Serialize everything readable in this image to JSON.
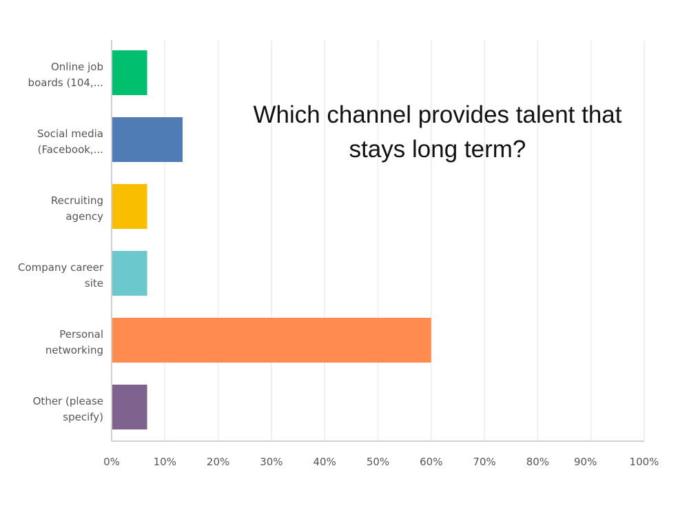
{
  "chart_data": {
    "type": "bar",
    "orientation": "horizontal",
    "title": "Which channel provides talent that stays long term?",
    "categories": [
      [
        "Online job",
        "boards (104,..."
      ],
      [
        "Social media",
        "(Facebook,..."
      ],
      [
        "Recruiting",
        "agency"
      ],
      [
        "Company career",
        "site"
      ],
      [
        "Personal",
        "networking"
      ],
      [
        "Other (please",
        "specify)"
      ]
    ],
    "values": [
      6.67,
      13.33,
      6.67,
      6.67,
      60.0,
      6.67
    ],
    "colors": [
      "#00bf6f",
      "#507cb6",
      "#f9be00",
      "#6bc8cd",
      "#ff8b4f",
      "#7f628e"
    ],
    "xlim": [
      0,
      100
    ],
    "xticks": [
      "0%",
      "10%",
      "20%",
      "30%",
      "40%",
      "50%",
      "60%",
      "70%",
      "80%",
      "90%",
      "100%"
    ],
    "xlabel": "",
    "ylabel": "",
    "grid": true,
    "unit": "%"
  }
}
